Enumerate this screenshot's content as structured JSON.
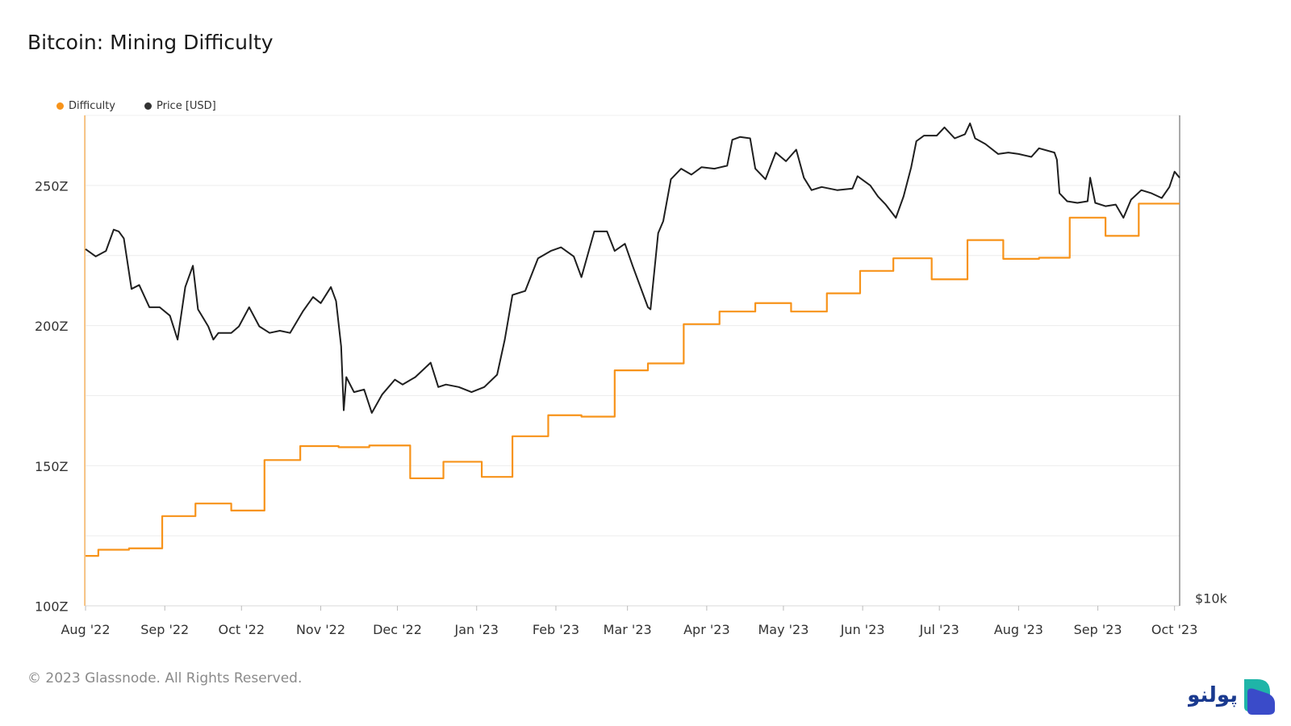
{
  "title": "Bitcoin: Mining Difficulty",
  "footer": "© 2023 Glassnode. All Rights Reserved.",
  "logo_text": "پولنو",
  "colors": {
    "difficulty": "#f7931a",
    "price": "#1f1f1f",
    "grid": "#ececec",
    "axis": "#d9d9d9",
    "logo_dark": "#1a3a8f",
    "logo_teal": "#1fb5a8",
    "logo_purple": "#5a3fc0"
  },
  "chart_data": {
    "type": "line",
    "legend_placement": "top-left",
    "grid": true,
    "x_axis": {
      "range": [
        "2022-08-01",
        "2023-10-03"
      ],
      "tick_labels": [
        "Aug '22",
        "Sep '22",
        "Oct '22",
        "Nov '22",
        "Dec '22",
        "Jan '23",
        "Feb '23",
        "Mar '23",
        "Apr '23",
        "May '23",
        "Jun '23",
        "Jul '23",
        "Aug '23",
        "Sep '23",
        "Oct '23"
      ],
      "tick_dates": [
        "2022-08-01",
        "2022-09-01",
        "2022-10-01",
        "2022-11-01",
        "2022-12-01",
        "2023-01-01",
        "2023-02-01",
        "2023-03-01",
        "2023-04-01",
        "2023-05-01",
        "2023-06-01",
        "2023-07-01",
        "2023-08-01",
        "2023-09-01",
        "2023-10-01"
      ]
    },
    "y_left": {
      "range": [
        100,
        275
      ],
      "tick_values": [
        100,
        150,
        200,
        250
      ],
      "tick_labels": [
        "100Z",
        "150Z",
        "200Z",
        "250Z"
      ]
    },
    "y_right": {
      "scale": "log",
      "range": [
        10000,
        32000
      ],
      "tick_values": [
        10000
      ],
      "tick_labels": [
        "$10k"
      ]
    },
    "series": [
      {
        "name": "Difficulty",
        "axis": "left",
        "step": true,
        "points": [
          [
            "2022-08-01",
            117.8
          ],
          [
            "2022-08-06",
            120.0
          ],
          [
            "2022-08-18",
            120.5
          ],
          [
            "2022-08-31",
            132.0
          ],
          [
            "2022-09-13",
            136.5
          ],
          [
            "2022-09-27",
            134.0
          ],
          [
            "2022-10-10",
            152.0
          ],
          [
            "2022-10-24",
            157.0
          ],
          [
            "2022-11-08",
            156.6
          ],
          [
            "2022-11-20",
            157.2
          ],
          [
            "2022-12-06",
            145.5
          ],
          [
            "2022-12-19",
            151.4
          ],
          [
            "2023-01-03",
            146.0
          ],
          [
            "2023-01-15",
            160.5
          ],
          [
            "2023-01-29",
            168.0
          ],
          [
            "2023-02-11",
            167.5
          ],
          [
            "2023-02-24",
            184.0
          ],
          [
            "2023-03-09",
            186.5
          ],
          [
            "2023-03-23",
            200.5
          ],
          [
            "2023-04-06",
            205.0
          ],
          [
            "2023-04-20",
            208.0
          ],
          [
            "2023-05-04",
            205.0
          ],
          [
            "2023-05-18",
            211.5
          ],
          [
            "2023-05-31",
            219.5
          ],
          [
            "2023-06-13",
            224.0
          ],
          [
            "2023-06-28",
            216.5
          ],
          [
            "2023-07-12",
            230.5
          ],
          [
            "2023-07-26",
            223.8
          ],
          [
            "2023-08-09",
            224.2
          ],
          [
            "2023-08-21",
            238.5
          ],
          [
            "2023-09-04",
            232.0
          ],
          [
            "2023-09-17",
            243.5
          ],
          [
            "2023-10-03",
            243.5
          ]
        ]
      },
      {
        "name": "Price [USD]",
        "axis": "right",
        "points": [
          [
            "2022-08-01",
            23300
          ],
          [
            "2022-08-05",
            22900
          ],
          [
            "2022-08-09",
            23200
          ],
          [
            "2022-08-12",
            24400
          ],
          [
            "2022-08-14",
            24300
          ],
          [
            "2022-08-16",
            23900
          ],
          [
            "2022-08-19",
            21200
          ],
          [
            "2022-08-22",
            21400
          ],
          [
            "2022-08-26",
            20300
          ],
          [
            "2022-08-30",
            20300
          ],
          [
            "2022-09-03",
            19900
          ],
          [
            "2022-09-06",
            18800
          ],
          [
            "2022-09-09",
            21300
          ],
          [
            "2022-09-12",
            22400
          ],
          [
            "2022-09-14",
            20200
          ],
          [
            "2022-09-18",
            19400
          ],
          [
            "2022-09-20",
            18800
          ],
          [
            "2022-09-22",
            19100
          ],
          [
            "2022-09-27",
            19100
          ],
          [
            "2022-09-30",
            19400
          ],
          [
            "2022-10-04",
            20300
          ],
          [
            "2022-10-08",
            19400
          ],
          [
            "2022-10-12",
            19100
          ],
          [
            "2022-10-16",
            19200
          ],
          [
            "2022-10-20",
            19100
          ],
          [
            "2022-10-25",
            20100
          ],
          [
            "2022-10-29",
            20800
          ],
          [
            "2022-11-01",
            20500
          ],
          [
            "2022-11-05",
            21300
          ],
          [
            "2022-11-07",
            20600
          ],
          [
            "2022-11-09",
            18500
          ],
          [
            "2022-11-10",
            15900
          ],
          [
            "2022-11-11",
            17200
          ],
          [
            "2022-11-14",
            16600
          ],
          [
            "2022-11-18",
            16700
          ],
          [
            "2022-11-21",
            15800
          ],
          [
            "2022-11-25",
            16500
          ],
          [
            "2022-11-30",
            17100
          ],
          [
            "2022-12-03",
            16900
          ],
          [
            "2022-12-08",
            17200
          ],
          [
            "2022-12-14",
            17800
          ],
          [
            "2022-12-17",
            16800
          ],
          [
            "2022-12-20",
            16900
          ],
          [
            "2022-12-25",
            16800
          ],
          [
            "2022-12-30",
            16600
          ],
          [
            "2023-01-04",
            16800
          ],
          [
            "2023-01-09",
            17300
          ],
          [
            "2023-01-12",
            18800
          ],
          [
            "2023-01-15",
            20900
          ],
          [
            "2023-01-20",
            21100
          ],
          [
            "2023-01-25",
            22800
          ],
          [
            "2023-01-30",
            23200
          ],
          [
            "2023-02-03",
            23400
          ],
          [
            "2023-02-08",
            22900
          ],
          [
            "2023-02-11",
            21800
          ],
          [
            "2023-02-16",
            24300
          ],
          [
            "2023-02-21",
            24300
          ],
          [
            "2023-02-24",
            23200
          ],
          [
            "2023-02-28",
            23600
          ],
          [
            "2023-03-03",
            22400
          ],
          [
            "2023-03-09",
            20300
          ],
          [
            "2023-03-10",
            20200
          ],
          [
            "2023-03-13",
            24200
          ],
          [
            "2023-03-15",
            24900
          ],
          [
            "2023-03-18",
            27500
          ],
          [
            "2023-03-22",
            28200
          ],
          [
            "2023-03-26",
            27800
          ],
          [
            "2023-03-30",
            28300
          ],
          [
            "2023-04-04",
            28200
          ],
          [
            "2023-04-09",
            28400
          ],
          [
            "2023-04-11",
            30200
          ],
          [
            "2023-04-14",
            30400
          ],
          [
            "2023-04-18",
            30300
          ],
          [
            "2023-04-20",
            28200
          ],
          [
            "2023-04-24",
            27500
          ],
          [
            "2023-04-28",
            29300
          ],
          [
            "2023-05-02",
            28700
          ],
          [
            "2023-05-06",
            29500
          ],
          [
            "2023-05-09",
            27600
          ],
          [
            "2023-05-12",
            26800
          ],
          [
            "2023-05-16",
            27000
          ],
          [
            "2023-05-22",
            26800
          ],
          [
            "2023-05-28",
            26900
          ],
          [
            "2023-05-30",
            27700
          ],
          [
            "2023-06-04",
            27100
          ],
          [
            "2023-06-07",
            26400
          ],
          [
            "2023-06-10",
            25900
          ],
          [
            "2023-06-14",
            25100
          ],
          [
            "2023-06-17",
            26400
          ],
          [
            "2023-06-20",
            28300
          ],
          [
            "2023-06-22",
            30100
          ],
          [
            "2023-06-25",
            30500
          ],
          [
            "2023-06-30",
            30500
          ],
          [
            "2023-07-03",
            31100
          ],
          [
            "2023-07-07",
            30300
          ],
          [
            "2023-07-11",
            30600
          ],
          [
            "2023-07-13",
            31400
          ],
          [
            "2023-07-15",
            30300
          ],
          [
            "2023-07-19",
            29900
          ],
          [
            "2023-07-24",
            29200
          ],
          [
            "2023-07-28",
            29300
          ],
          [
            "2023-08-01",
            29200
          ],
          [
            "2023-08-06",
            29000
          ],
          [
            "2023-08-09",
            29600
          ],
          [
            "2023-08-15",
            29300
          ],
          [
            "2023-08-16",
            28800
          ],
          [
            "2023-08-17",
            26600
          ],
          [
            "2023-08-20",
            26100
          ],
          [
            "2023-08-24",
            26000
          ],
          [
            "2023-08-28",
            26100
          ],
          [
            "2023-08-29",
            27600
          ],
          [
            "2023-08-31",
            26000
          ],
          [
            "2023-09-04",
            25800
          ],
          [
            "2023-09-08",
            25900
          ],
          [
            "2023-09-11",
            25100
          ],
          [
            "2023-09-14",
            26200
          ],
          [
            "2023-09-18",
            26800
          ],
          [
            "2023-09-22",
            26600
          ],
          [
            "2023-09-26",
            26300
          ],
          [
            "2023-09-29",
            27000
          ],
          [
            "2023-10-01",
            28000
          ],
          [
            "2023-10-03",
            27600
          ]
        ]
      }
    ]
  }
}
